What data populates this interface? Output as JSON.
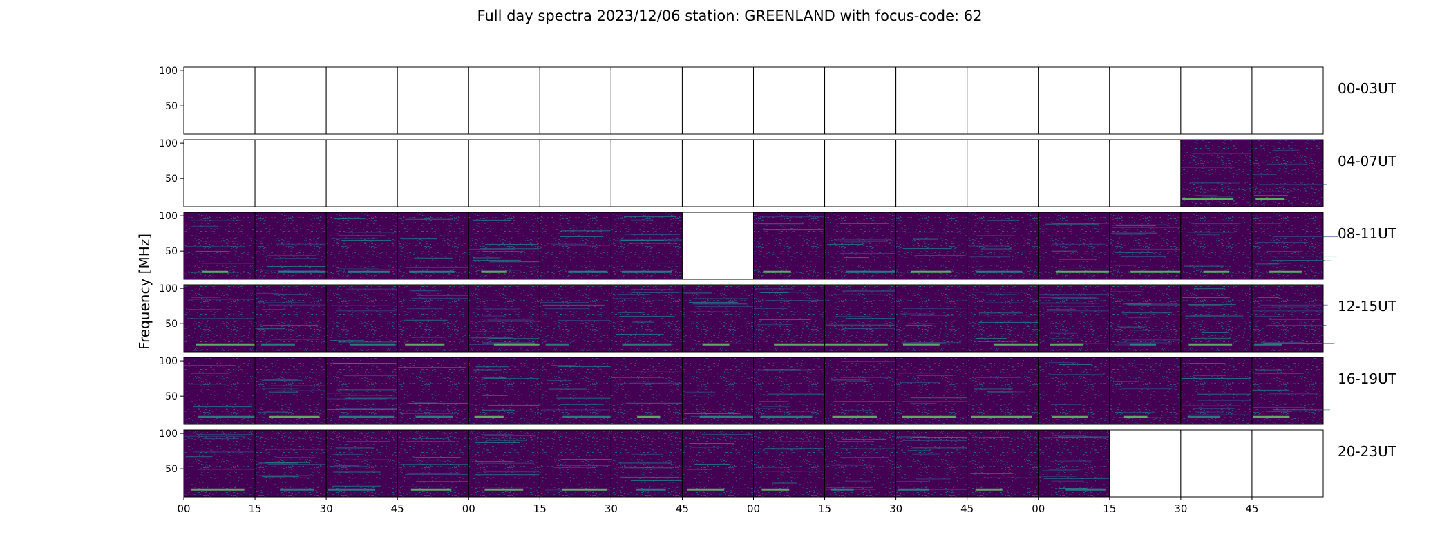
{
  "chart_data": {
    "type": "heatmap",
    "title": "Full day spectra 2023/12/06 station: GREENLAND with focus-code: 62",
    "ylabel": "Frequency [MHz]",
    "xlabel": "",
    "ylim": [
      10,
      105
    ],
    "y_ticks": [
      "100",
      "50"
    ],
    "x_tick_labels": [
      "00",
      "15",
      "30",
      "45",
      "00",
      "15",
      "30",
      "45",
      "00",
      "15",
      "30",
      "45",
      "00",
      "15",
      "30",
      "45"
    ],
    "colormap": [
      "#440154",
      "#3b528b",
      "#21918c",
      "#5ec962",
      "#fde725"
    ],
    "rows": [
      {
        "label": "00-03UT",
        "panels": [
          "empty",
          "empty",
          "empty",
          "empty",
          "empty",
          "empty",
          "empty",
          "empty",
          "empty",
          "empty",
          "empty",
          "empty",
          "empty",
          "empty",
          "empty",
          "empty"
        ]
      },
      {
        "label": "04-07UT",
        "panels": [
          "empty",
          "empty",
          "empty",
          "empty",
          "empty",
          "empty",
          "empty",
          "empty",
          "empty",
          "empty",
          "empty",
          "empty",
          "empty",
          "empty",
          "data",
          "data"
        ]
      },
      {
        "label": "08-11UT",
        "panels": [
          "data",
          "data",
          "data",
          "data",
          "data",
          "data",
          "data",
          "empty",
          "data",
          "data",
          "data",
          "data",
          "data",
          "data",
          "data",
          "data"
        ]
      },
      {
        "label": "12-15UT",
        "panels": [
          "data",
          "data",
          "data",
          "data",
          "data",
          "data",
          "data",
          "data",
          "data",
          "data",
          "data",
          "data",
          "data",
          "data",
          "data",
          "data"
        ]
      },
      {
        "label": "16-19UT",
        "panels": [
          "data",
          "data",
          "data",
          "data",
          "data",
          "data",
          "data",
          "data",
          "data",
          "data",
          "data",
          "data",
          "data",
          "data",
          "data",
          "data"
        ]
      },
      {
        "label": "20-23UT",
        "panels": [
          "data",
          "data",
          "data",
          "data",
          "data",
          "data",
          "data",
          "data",
          "data",
          "data",
          "data",
          "data",
          "data",
          "empty",
          "empty",
          "empty"
        ]
      }
    ]
  }
}
